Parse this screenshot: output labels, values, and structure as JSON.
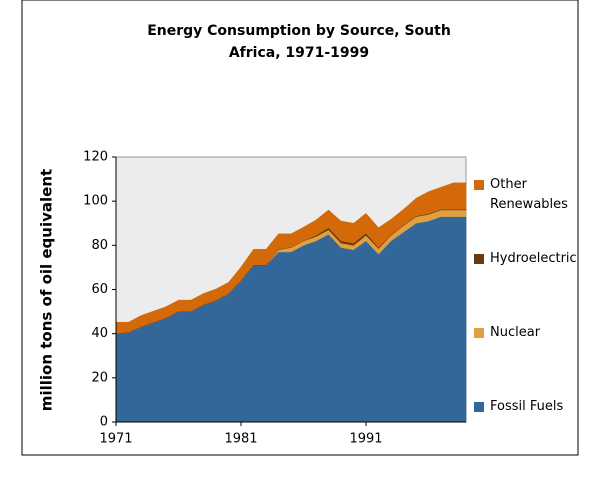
{
  "chart_data": {
    "type": "area",
    "title": "Energy Consumption by Source, South Africa, 1971-1999",
    "y_label": "million tons of oil equivalent",
    "x": [
      1971,
      1972,
      1973,
      1974,
      1975,
      1976,
      1977,
      1978,
      1979,
      1980,
      1981,
      1982,
      1983,
      1984,
      1985,
      1986,
      1987,
      1988,
      1989,
      1990,
      1991,
      1992,
      1993,
      1994,
      1995,
      1996,
      1997,
      1998,
      1999
    ],
    "xlim": [
      1971,
      1999
    ],
    "xticks": [
      1971,
      1981,
      1991
    ],
    "ylim": [
      0,
      120
    ],
    "yticks": [
      0,
      20,
      40,
      60,
      80,
      100,
      120
    ],
    "stacked": true,
    "grid": false,
    "legend": "right",
    "background": "#ececec",
    "series": [
      {
        "name": "Fossil Fuels",
        "color": "#336699",
        "values": [
          40,
          40.5,
          43,
          45,
          47,
          50,
          50,
          53,
          55,
          58,
          64,
          71,
          71,
          77,
          77,
          80,
          82,
          85,
          79,
          78,
          82,
          76,
          82,
          86,
          90,
          91,
          93,
          93,
          93
        ]
      },
      {
        "name": "Nuclear",
        "color": "#e0a040",
        "values": [
          0,
          0,
          0,
          0,
          0,
          0,
          0,
          0,
          0,
          0,
          0,
          0,
          0,
          1,
          2,
          2,
          2,
          2,
          2,
          2,
          2.5,
          2.5,
          2.5,
          3,
          3,
          3,
          3,
          3,
          3
        ]
      },
      {
        "name": "Hydroelectric",
        "color": "#6b3a10",
        "values": [
          0.2,
          0.2,
          0.2,
          0.2,
          0.2,
          0.2,
          0.2,
          0.2,
          0.2,
          0.2,
          0.2,
          0.2,
          0.2,
          0.2,
          0.2,
          0.2,
          0.5,
          1,
          1,
          1,
          1,
          0.5,
          0.3,
          0.3,
          0.3,
          0.3,
          0.3,
          0.3,
          0.3
        ]
      },
      {
        "name": "Other Renewables",
        "color": "#d4690a",
        "values": [
          5,
          4.5,
          5,
          5,
          5,
          5,
          5,
          5,
          5,
          5,
          6,
          7,
          7,
          7,
          6,
          6,
          7,
          8,
          9,
          9,
          9,
          9,
          7,
          7,
          8,
          10,
          10,
          12,
          12
        ]
      }
    ]
  }
}
